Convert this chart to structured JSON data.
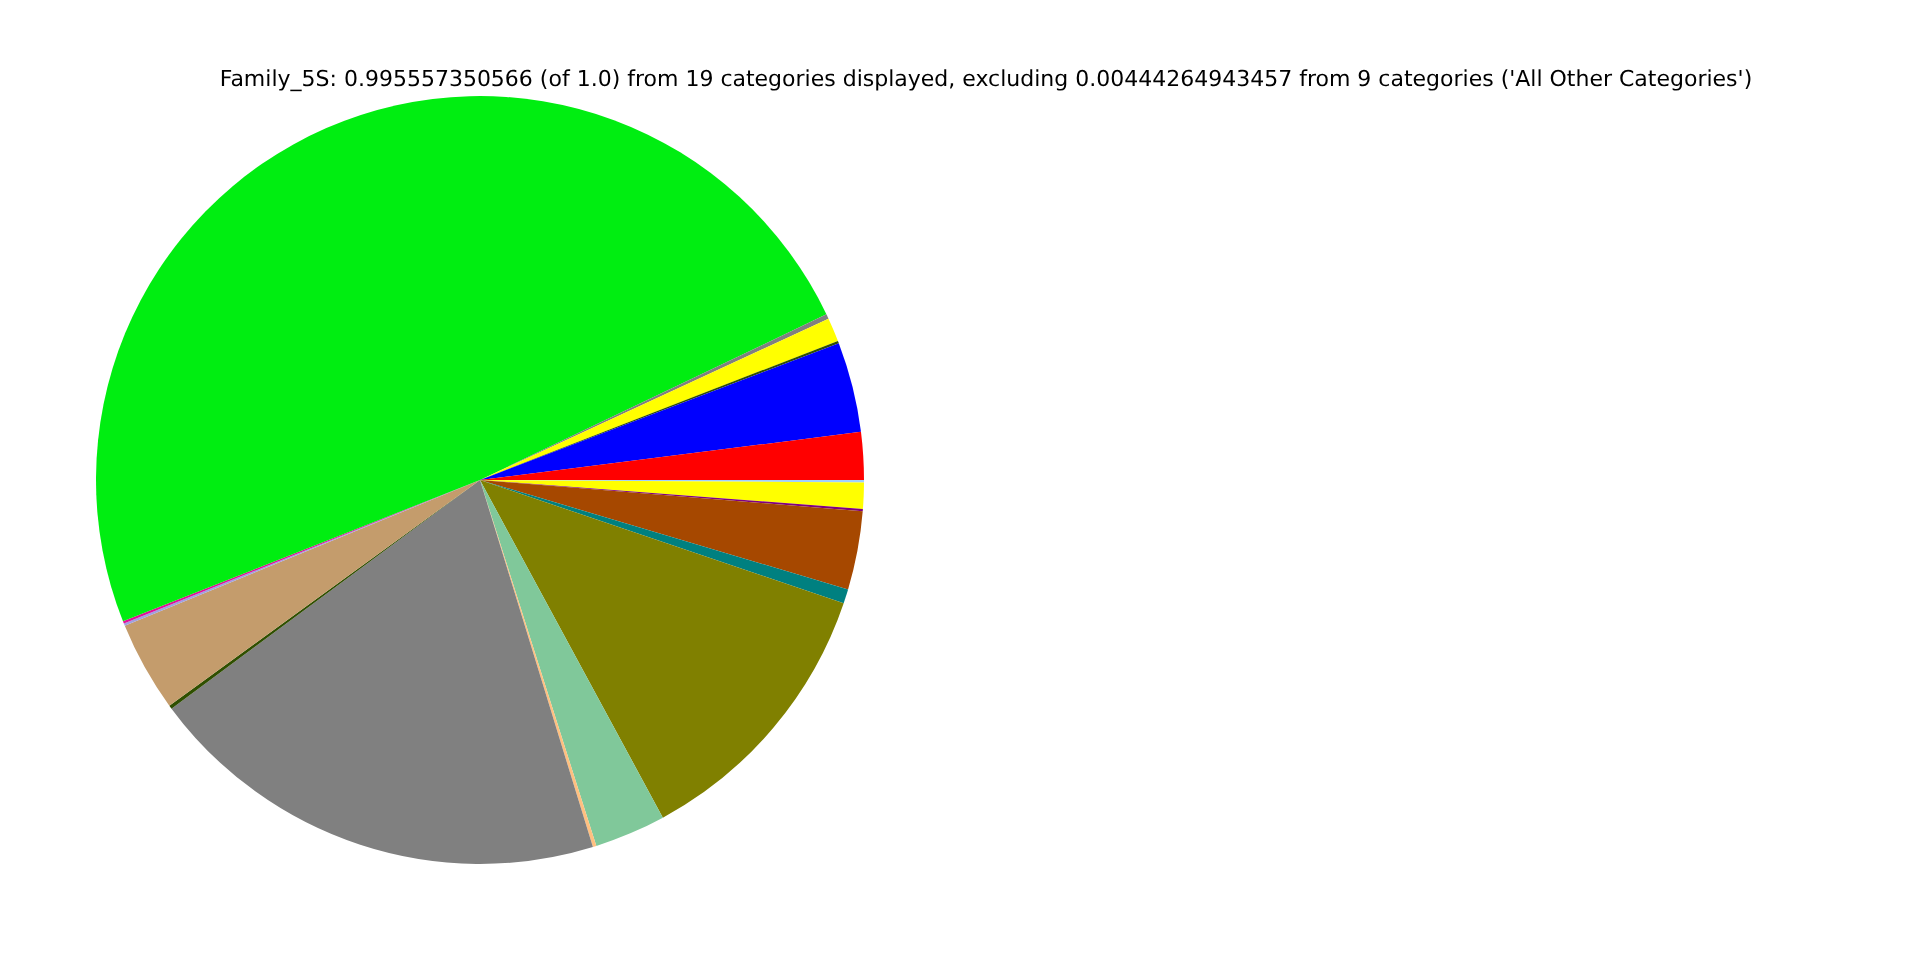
{
  "chart_data": {
    "type": "pie",
    "title": "Family_5S: 0.995557350566 (of 1.0) from 19 categories displayed, excluding 0.00444264943457 from 9 categories ('All Other Categories')",
    "categories": [
      null,
      null,
      null,
      null,
      null,
      null,
      null,
      null,
      null,
      null,
      null,
      null,
      null,
      null,
      null,
      null,
      null,
      null,
      null
    ],
    "values": [
      0.1,
      1.1,
      0.1,
      3.3,
      0.6,
      11.9,
      3.0,
      0.15,
      19.6,
      0.15,
      3.8,
      0.1,
      0.1,
      48.9,
      0.2,
      1.0,
      0.1,
      3.8,
      2.0
    ],
    "colors": [
      "#a0d0ff",
      "#ffff00",
      "#800080",
      "#a64800",
      "#008080",
      "#808000",
      "#80c89a",
      "#ffc080",
      "#808080",
      "#2f4f00",
      "#c49c6c",
      "#a0a0e0",
      "#e0109a",
      "#00ee11",
      "#808080",
      "#ffff00",
      "#2f4f00",
      "#0000ff",
      "#ff0000"
    ]
  }
}
